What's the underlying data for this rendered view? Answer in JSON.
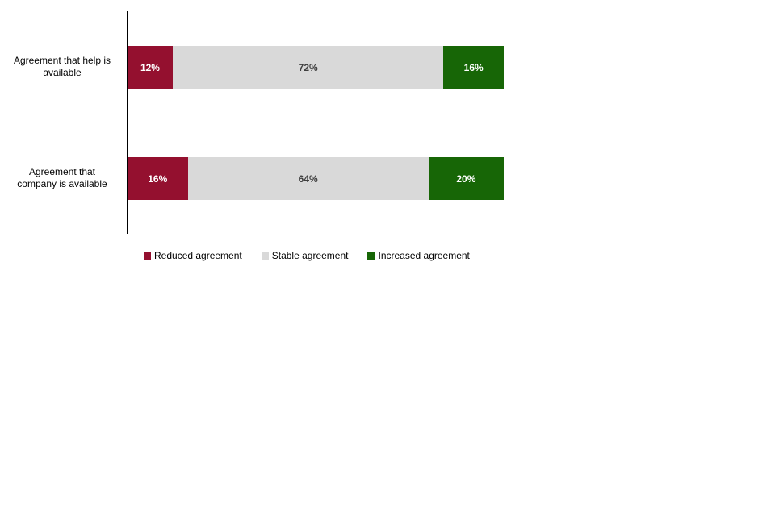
{
  "chart_data": {
    "type": "bar",
    "subtype": "horizontal_stacked",
    "title": "",
    "xlabel": "",
    "ylabel": "",
    "xlim": [
      0,
      100
    ],
    "value_suffix": "%",
    "grid": false,
    "legend_position": "bottom",
    "axis_color": "#000000",
    "categories": [
      {
        "line1": "Agreement that help is",
        "line2": "available"
      },
      {
        "line1": "Agreement that",
        "line2": "company is available"
      }
    ],
    "series": [
      {
        "name": "Reduced agreement",
        "color": "#94102F",
        "label_color": "#FFFFFF",
        "values": [
          12,
          16
        ]
      },
      {
        "name": "Stable agreement",
        "color": "#D9D9D9",
        "label_color": "#3F3F3F",
        "values": [
          72,
          64
        ]
      },
      {
        "name": "Increased agreement",
        "color": "#176606",
        "label_color": "#FFFFFF",
        "values": [
          16,
          20
        ]
      }
    ]
  }
}
